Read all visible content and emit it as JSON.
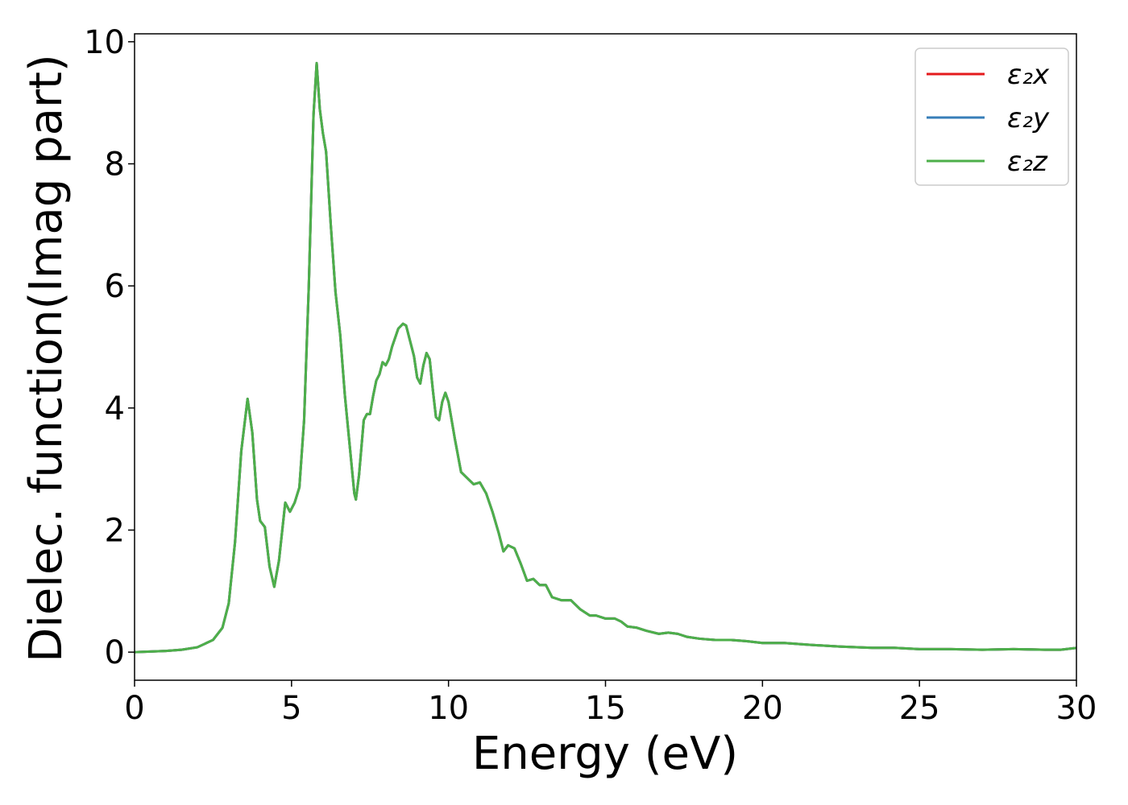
{
  "chart_data": {
    "type": "line",
    "xlabel": "Energy (eV)",
    "ylabel": "Dielec. function(Imag part)",
    "x": [
      0,
      1,
      1.5,
      2,
      2.5,
      2.8,
      3.0,
      3.2,
      3.4,
      3.6,
      3.75,
      3.9,
      4.0,
      4.15,
      4.3,
      4.45,
      4.6,
      4.8,
      4.95,
      5.1,
      5.25,
      5.4,
      5.55,
      5.7,
      5.8,
      5.9,
      6.0,
      6.1,
      6.25,
      6.4,
      6.55,
      6.7,
      6.85,
      7.0,
      7.05,
      7.15,
      7.3,
      7.4,
      7.5,
      7.6,
      7.7,
      7.8,
      7.9,
      8.0,
      8.1,
      8.2,
      8.4,
      8.55,
      8.65,
      8.8,
      8.9,
      9.0,
      9.1,
      9.2,
      9.3,
      9.4,
      9.5,
      9.6,
      9.7,
      9.8,
      9.9,
      10.0,
      10.2,
      10.4,
      10.6,
      10.8,
      11.0,
      11.2,
      11.4,
      11.6,
      11.75,
      11.9,
      12.1,
      12.3,
      12.5,
      12.7,
      12.9,
      13.1,
      13.3,
      13.6,
      13.9,
      14.2,
      14.5,
      14.7,
      15.0,
      15.3,
      15.5,
      15.7,
      16.0,
      16.3,
      16.7,
      17.0,
      17.3,
      17.6,
      18.0,
      18.5,
      19.0,
      19.5,
      20.0,
      20.7,
      21.5,
      22.5,
      23.5,
      24.2,
      25,
      26,
      27,
      28,
      29,
      29.5,
      30
    ],
    "series": [
      {
        "name": "ε₂x",
        "color": "#e41a1c",
        "values": [
          0,
          0.02,
          0.04,
          0.08,
          0.2,
          0.4,
          0.8,
          1.8,
          3.3,
          4.15,
          3.6,
          2.5,
          2.15,
          2.05,
          1.4,
          1.07,
          1.5,
          2.45,
          2.3,
          2.45,
          2.7,
          3.8,
          6.0,
          8.8,
          9.65,
          8.9,
          8.5,
          8.2,
          7.0,
          5.9,
          5.2,
          4.2,
          3.4,
          2.6,
          2.5,
          2.9,
          3.8,
          3.9,
          3.9,
          4.2,
          4.45,
          4.55,
          4.75,
          4.7,
          4.8,
          5.0,
          5.3,
          5.38,
          5.35,
          5.05,
          4.85,
          4.5,
          4.4,
          4.7,
          4.9,
          4.8,
          4.3,
          3.85,
          3.8,
          4.1,
          4.25,
          4.1,
          3.5,
          2.95,
          2.85,
          2.75,
          2.78,
          2.6,
          2.3,
          1.95,
          1.65,
          1.75,
          1.7,
          1.45,
          1.17,
          1.2,
          1.1,
          1.1,
          0.9,
          0.85,
          0.85,
          0.7,
          0.6,
          0.6,
          0.55,
          0.55,
          0.5,
          0.42,
          0.4,
          0.35,
          0.3,
          0.32,
          0.3,
          0.25,
          0.22,
          0.2,
          0.2,
          0.18,
          0.15,
          0.15,
          0.12,
          0.09,
          0.07,
          0.07,
          0.05,
          0.05,
          0.04,
          0.05,
          0.04,
          0.04,
          0.07
        ]
      },
      {
        "name": "ε₂y",
        "color": "#377eb8",
        "values": [
          0,
          0.02,
          0.04,
          0.08,
          0.2,
          0.4,
          0.8,
          1.8,
          3.3,
          4.15,
          3.6,
          2.5,
          2.15,
          2.05,
          1.4,
          1.07,
          1.5,
          2.45,
          2.3,
          2.45,
          2.7,
          3.8,
          6.0,
          8.8,
          9.65,
          8.9,
          8.5,
          8.2,
          7.0,
          5.9,
          5.2,
          4.2,
          3.4,
          2.6,
          2.5,
          2.9,
          3.8,
          3.9,
          3.9,
          4.2,
          4.45,
          4.55,
          4.75,
          4.7,
          4.8,
          5.0,
          5.3,
          5.38,
          5.35,
          5.05,
          4.85,
          4.5,
          4.4,
          4.7,
          4.9,
          4.8,
          4.3,
          3.85,
          3.8,
          4.1,
          4.25,
          4.1,
          3.5,
          2.95,
          2.85,
          2.75,
          2.78,
          2.6,
          2.3,
          1.95,
          1.65,
          1.75,
          1.7,
          1.45,
          1.17,
          1.2,
          1.1,
          1.1,
          0.9,
          0.85,
          0.85,
          0.7,
          0.6,
          0.6,
          0.55,
          0.55,
          0.5,
          0.42,
          0.4,
          0.35,
          0.3,
          0.32,
          0.3,
          0.25,
          0.22,
          0.2,
          0.2,
          0.18,
          0.15,
          0.15,
          0.12,
          0.09,
          0.07,
          0.07,
          0.05,
          0.05,
          0.04,
          0.05,
          0.04,
          0.04,
          0.07
        ]
      },
      {
        "name": "ε₂z",
        "color": "#4daf4a",
        "values": [
          0,
          0.02,
          0.04,
          0.08,
          0.2,
          0.4,
          0.8,
          1.8,
          3.3,
          4.15,
          3.6,
          2.5,
          2.15,
          2.05,
          1.4,
          1.07,
          1.5,
          2.45,
          2.3,
          2.45,
          2.7,
          3.8,
          6.0,
          8.8,
          9.65,
          8.9,
          8.5,
          8.2,
          7.0,
          5.9,
          5.2,
          4.2,
          3.4,
          2.6,
          2.5,
          2.9,
          3.8,
          3.9,
          3.9,
          4.2,
          4.45,
          4.55,
          4.75,
          4.7,
          4.8,
          5.0,
          5.3,
          5.38,
          5.35,
          5.05,
          4.85,
          4.5,
          4.4,
          4.7,
          4.9,
          4.8,
          4.3,
          3.85,
          3.8,
          4.1,
          4.25,
          4.1,
          3.5,
          2.95,
          2.85,
          2.75,
          2.78,
          2.6,
          2.3,
          1.95,
          1.65,
          1.75,
          1.7,
          1.45,
          1.17,
          1.2,
          1.1,
          1.1,
          0.9,
          0.85,
          0.85,
          0.7,
          0.6,
          0.6,
          0.55,
          0.55,
          0.5,
          0.42,
          0.4,
          0.35,
          0.3,
          0.32,
          0.3,
          0.25,
          0.22,
          0.2,
          0.2,
          0.18,
          0.15,
          0.15,
          0.12,
          0.09,
          0.07,
          0.07,
          0.05,
          0.05,
          0.04,
          0.05,
          0.04,
          0.04,
          0.07
        ]
      }
    ],
    "xlim": [
      0,
      30
    ],
    "xticks": [
      0,
      5,
      10,
      15,
      20,
      25,
      30
    ],
    "ylim": [
      -0.46,
      10.13
    ],
    "yticks": [
      0,
      2,
      4,
      6,
      8,
      10
    ],
    "grid": false,
    "legend": "upper right"
  }
}
